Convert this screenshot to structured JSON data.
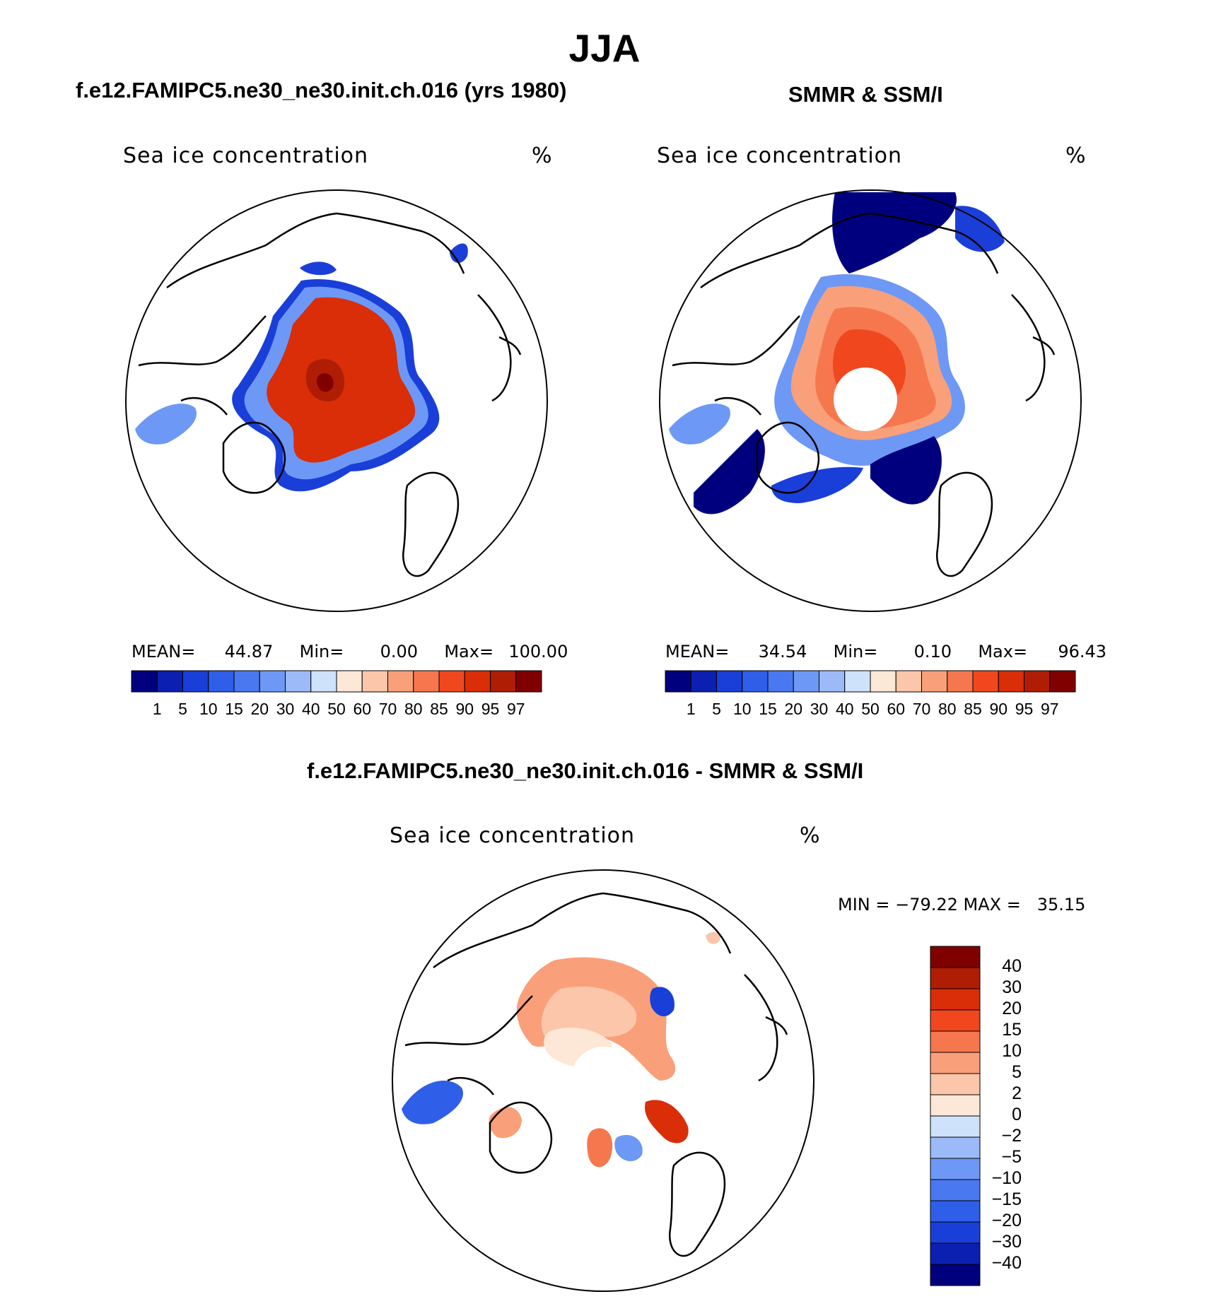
{
  "title": "JJA",
  "panels": [
    {
      "id": "model",
      "title": "f.e12.FAMIPC5.ne30_ne30.init.ch.016 (yrs 1980)",
      "variable": "Sea ice concentration",
      "units": "%",
      "stats": {
        "mean_label": "MEAN=",
        "mean": "44.87",
        "min_label": "Min=",
        "min": "0.00",
        "max_label": "Max=",
        "max": "100.00"
      }
    },
    {
      "id": "obs",
      "title": "SMMR & SSM/I",
      "variable": "Sea ice concentration",
      "units": "%",
      "stats": {
        "mean_label": "MEAN=",
        "mean": "34.54",
        "min_label": "Min=",
        "min": "0.10",
        "max_label": "Max=",
        "max": "96.43"
      }
    },
    {
      "id": "diff",
      "title": "f.e12.FAMIPC5.ne30_ne30.init.ch.016 - SMMR & SSM/I",
      "variable": "Sea ice concentration",
      "units": "%",
      "minmax_text": "MIN = −79.22 MAX =   35.15"
    }
  ],
  "colorbar_abs": {
    "levels": [
      "1",
      "5",
      "10",
      "15",
      "20",
      "30",
      "40",
      "50",
      "60",
      "70",
      "80",
      "85",
      "90",
      "95",
      "97"
    ],
    "colors": [
      "#00007f",
      "#0b1fb0",
      "#1a3fd8",
      "#2f5fe8",
      "#4a78f0",
      "#6e98f5",
      "#9dbaf8",
      "#cfe2fb",
      "#fde7d6",
      "#fbc6a9",
      "#f9a07a",
      "#f6774e",
      "#f1471f",
      "#d92e08",
      "#b01d05",
      "#800000"
    ]
  },
  "colorbar_diff": {
    "levels": [
      "40",
      "30",
      "20",
      "15",
      "10",
      "5",
      "2",
      "0",
      "−2",
      "−5",
      "−10",
      "−15",
      "−20",
      "−30",
      "−40"
    ],
    "colors": [
      "#800000",
      "#b01d05",
      "#d92e08",
      "#f1471f",
      "#f6774e",
      "#f9a07a",
      "#fbc6a9",
      "#fde7d6",
      "#cfe2fb",
      "#9dbaf8",
      "#6e98f5",
      "#4a78f0",
      "#2f5fe8",
      "#1a3fd8",
      "#0b1fb0",
      "#00007f"
    ]
  },
  "map_fields": {
    "model_ice": [
      "#d92e08",
      "#f1471f",
      "#f9a07a",
      "#6e98f5",
      "#1a3fd8",
      "#800000",
      "#b01d05"
    ],
    "obs_ice": [
      "#f1471f",
      "#f6774e",
      "#f9a07a",
      "#00007f",
      "#1a3fd8",
      "#6e98f5"
    ],
    "diff_ice": [
      "#f9a07a",
      "#fbc6a9",
      "#fde7d6",
      "#f6774e",
      "#d92e08",
      "#2f5fe8",
      "#6e98f5",
      "#1a3fd8"
    ]
  }
}
